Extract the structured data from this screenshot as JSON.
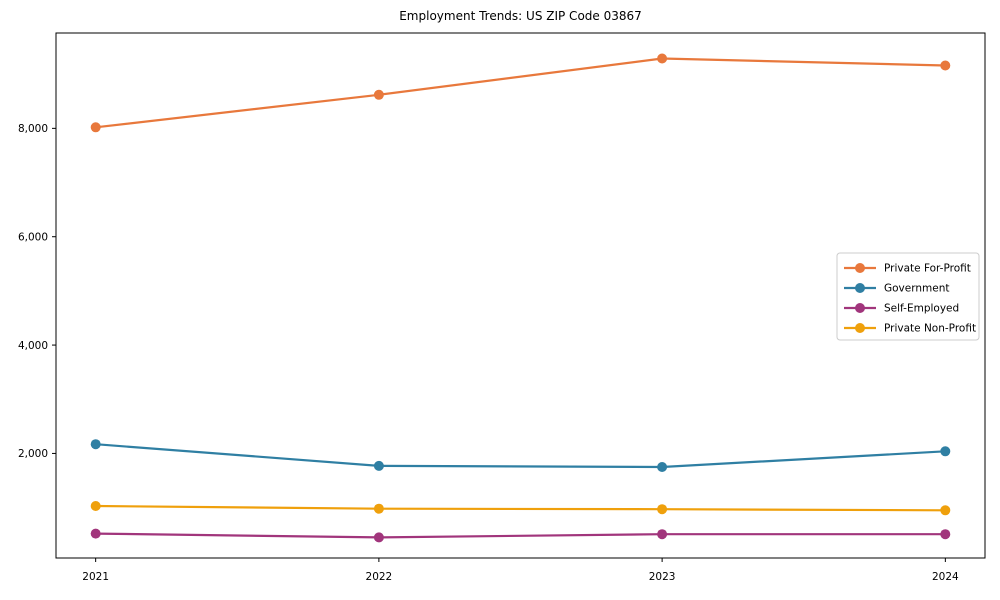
{
  "chart_data": {
    "type": "line",
    "title": "Employment Trends: US ZIP Code 03867",
    "xlabel": "",
    "ylabel": "",
    "x": [
      2021,
      2022,
      2023,
      2024
    ],
    "categories": [
      "2021",
      "2022",
      "2023",
      "2024"
    ],
    "series": [
      {
        "name": "Private For-Profit",
        "color": "#E8783C",
        "values": [
          8020,
          8620,
          9290,
          9160
        ]
      },
      {
        "name": "Government",
        "color": "#2F7FA3",
        "values": [
          2170,
          1770,
          1750,
          2040
        ]
      },
      {
        "name": "Self-Employed",
        "color": "#A1357C",
        "values": [
          520,
          450,
          510,
          510
        ]
      },
      {
        "name": "Private Non-Profit",
        "color": "#EFA00C",
        "values": [
          1030,
          980,
          970,
          950
        ]
      }
    ],
    "yticks": [
      2000,
      4000,
      6000,
      8000
    ],
    "ytick_labels": [
      "2,000",
      "4,000",
      "6,000",
      "8,000"
    ],
    "xlim": [
      2020.86,
      2024.14
    ],
    "ylim": [
      70,
      9760
    ],
    "grid": false,
    "legend_position": "middle-right",
    "axis_color": "#000000",
    "legend_border_color": "#cccccc",
    "background_color": "#ffffff"
  }
}
